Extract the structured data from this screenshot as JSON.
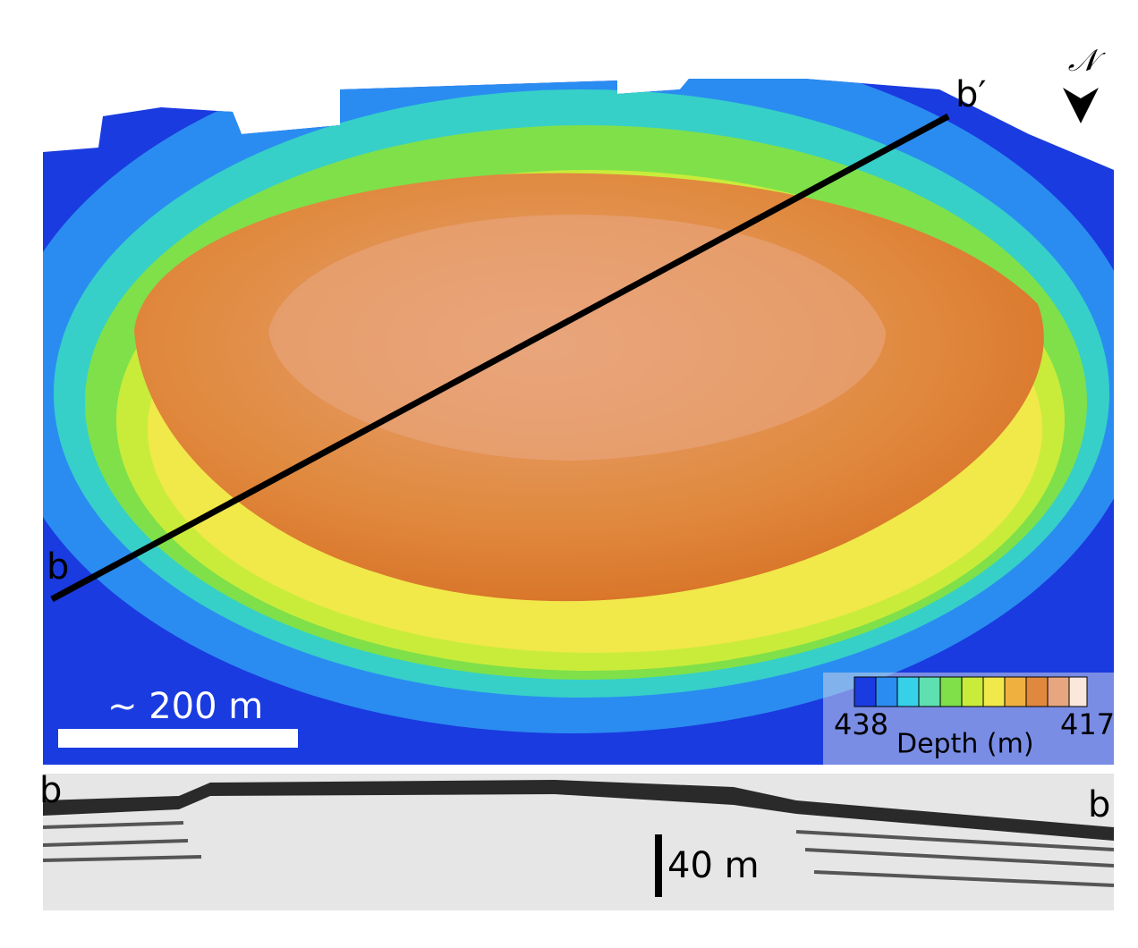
{
  "map": {
    "start_label": "b",
    "end_label": "b′",
    "north_label": "𝒩",
    "scale_label": "~ 200 m",
    "colorbar": {
      "min_label": "438",
      "max_label": "417",
      "title": "Depth (m)"
    }
  },
  "profile": {
    "left_label": "b",
    "right_label": "b",
    "scale_label": "40 m"
  }
}
